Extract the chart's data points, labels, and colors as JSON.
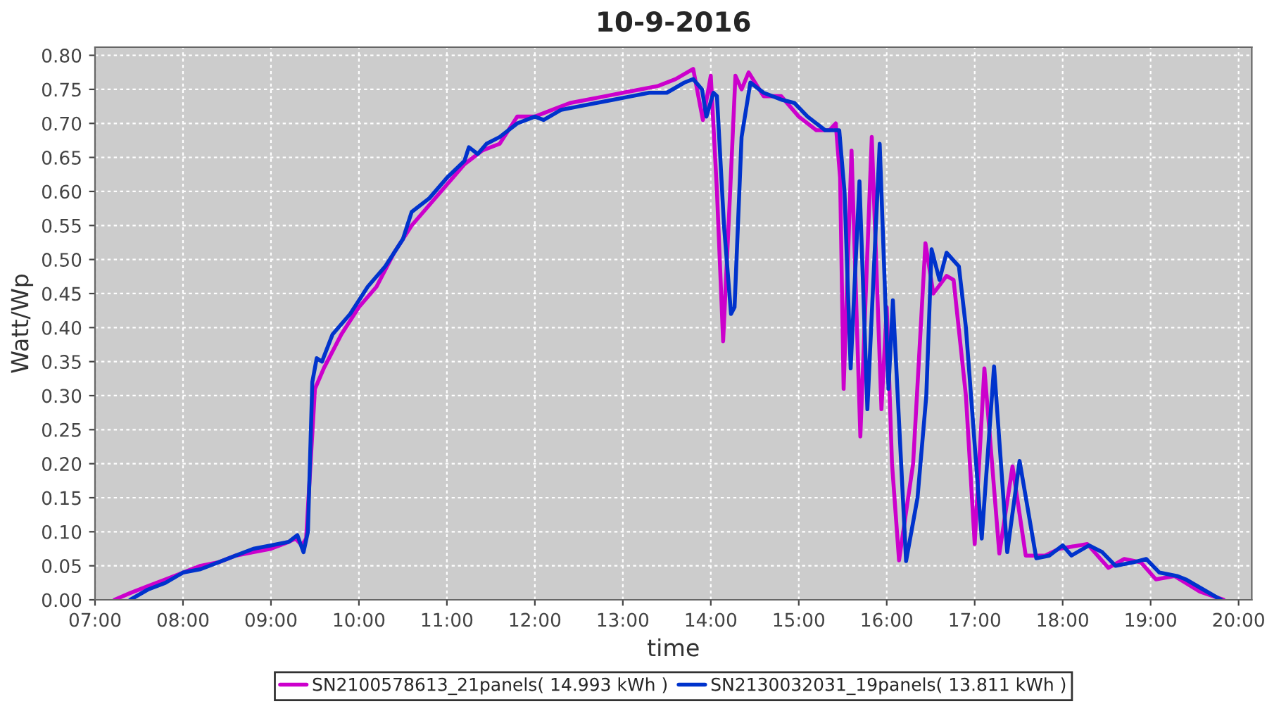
{
  "chart_data": {
    "type": "line",
    "title": "10-9-2016",
    "xlabel": "time",
    "ylabel": "Watt/Wp",
    "series": [
      {
        "name": "SN2100578613_21panels( 14.993 kWh )",
        "color": "#cc00cc",
        "x": [
          7.22,
          7.4,
          7.6,
          7.8,
          8.0,
          8.2,
          8.4,
          8.6,
          8.8,
          9.0,
          9.2,
          9.28,
          9.35,
          9.4,
          9.45,
          9.5,
          9.6,
          9.8,
          10.0,
          10.2,
          10.4,
          10.6,
          10.8,
          11.0,
          11.2,
          11.4,
          11.6,
          11.8,
          12.0,
          12.2,
          12.4,
          12.6,
          12.8,
          13.0,
          13.2,
          13.4,
          13.6,
          13.8,
          13.91,
          14.0,
          14.07,
          14.14,
          14.22,
          14.28,
          14.35,
          14.43,
          14.6,
          14.8,
          15.0,
          15.2,
          15.35,
          15.42,
          15.47,
          15.51,
          15.6,
          15.7,
          15.83,
          15.94,
          16.0,
          16.06,
          16.14,
          16.3,
          16.44,
          16.53,
          16.68,
          16.76,
          16.9,
          17.0,
          17.11,
          17.28,
          17.43,
          17.58,
          17.8,
          17.96,
          18.28,
          18.52,
          18.7,
          18.89,
          19.06,
          19.27,
          19.56,
          19.83
        ],
        "values": [
          0,
          0.01,
          0.02,
          0.03,
          0.04,
          0.05,
          0.055,
          0.065,
          0.07,
          0.075,
          0.085,
          0.09,
          0.08,
          0.09,
          0.2,
          0.31,
          0.34,
          0.39,
          0.43,
          0.46,
          0.51,
          0.55,
          0.58,
          0.61,
          0.64,
          0.66,
          0.67,
          0.71,
          0.71,
          0.72,
          0.73,
          0.735,
          0.74,
          0.745,
          0.75,
          0.755,
          0.765,
          0.78,
          0.705,
          0.77,
          0.6,
          0.38,
          0.6,
          0.77,
          0.75,
          0.775,
          0.74,
          0.74,
          0.71,
          0.69,
          0.69,
          0.7,
          0.62,
          0.31,
          0.66,
          0.24,
          0.68,
          0.28,
          0.43,
          0.2,
          0.058,
          0.2,
          0.524,
          0.45,
          0.476,
          0.47,
          0.3,
          0.082,
          0.34,
          0.068,
          0.196,
          0.065,
          0.065,
          0.075,
          0.082,
          0.047,
          0.06,
          0.055,
          0.03,
          0.035,
          0.012,
          0
        ]
      },
      {
        "name": "SN2130032031_19panels( 13.811 kWh )",
        "color": "#0033cc",
        "x": [
          7.4,
          7.6,
          7.8,
          8.0,
          8.2,
          8.4,
          8.6,
          8.8,
          9.0,
          9.2,
          9.3,
          9.37,
          9.42,
          9.47,
          9.52,
          9.58,
          9.7,
          9.9,
          10.1,
          10.3,
          10.5,
          10.6,
          10.8,
          11.0,
          11.2,
          11.25,
          11.35,
          11.45,
          11.6,
          11.8,
          12.0,
          12.1,
          12.3,
          12.5,
          12.7,
          12.9,
          13.1,
          13.3,
          13.5,
          13.7,
          13.8,
          13.9,
          13.95,
          14.03,
          14.07,
          14.15,
          14.23,
          14.27,
          14.35,
          14.45,
          14.6,
          14.8,
          14.95,
          15.1,
          15.3,
          15.46,
          15.52,
          15.59,
          15.69,
          15.78,
          15.92,
          16.02,
          16.07,
          16.22,
          16.35,
          16.45,
          16.51,
          16.6,
          16.68,
          16.82,
          16.9,
          17.08,
          17.22,
          17.37,
          17.51,
          17.7,
          17.85,
          18.0,
          18.1,
          18.3,
          18.45,
          18.6,
          18.8,
          18.95,
          19.1,
          19.3,
          19.4,
          19.6,
          19.8
        ],
        "values": [
          0,
          0.015,
          0.025,
          0.04,
          0.045,
          0.055,
          0.065,
          0.075,
          0.08,
          0.085,
          0.095,
          0.07,
          0.1,
          0.32,
          0.355,
          0.35,
          0.39,
          0.42,
          0.46,
          0.49,
          0.53,
          0.57,
          0.59,
          0.62,
          0.645,
          0.665,
          0.655,
          0.67,
          0.68,
          0.7,
          0.71,
          0.705,
          0.72,
          0.725,
          0.73,
          0.735,
          0.74,
          0.745,
          0.745,
          0.76,
          0.765,
          0.75,
          0.71,
          0.745,
          0.74,
          0.55,
          0.42,
          0.43,
          0.68,
          0.76,
          0.745,
          0.735,
          0.73,
          0.71,
          0.69,
          0.69,
          0.6,
          0.34,
          0.615,
          0.28,
          0.67,
          0.31,
          0.44,
          0.057,
          0.15,
          0.3,
          0.515,
          0.47,
          0.51,
          0.49,
          0.4,
          0.09,
          0.343,
          0.07,
          0.204,
          0.061,
          0.065,
          0.08,
          0.065,
          0.08,
          0.07,
          0.05,
          0.055,
          0.06,
          0.04,
          0.035,
          0.03,
          0.015,
          0
        ]
      }
    ],
    "xlim": [
      7.0,
      20.15
    ],
    "xticks": [
      {
        "value": 7,
        "label": "07:00"
      },
      {
        "value": 8,
        "label": "08:00"
      },
      {
        "value": 9,
        "label": "09:00"
      },
      {
        "value": 10,
        "label": "10:00"
      },
      {
        "value": 11,
        "label": "11:00"
      },
      {
        "value": 12,
        "label": "12:00"
      },
      {
        "value": 13,
        "label": "13:00"
      },
      {
        "value": 14,
        "label": "14:00"
      },
      {
        "value": 15,
        "label": "15:00"
      },
      {
        "value": 16,
        "label": "16:00"
      },
      {
        "value": 17,
        "label": "17:00"
      },
      {
        "value": 18,
        "label": "18:00"
      },
      {
        "value": 19,
        "label": "19:00"
      },
      {
        "value": 20,
        "label": "20:00"
      }
    ],
    "ylim": [
      0,
      0.812
    ],
    "yticks": [
      {
        "value": 0,
        "label": "0.00"
      },
      {
        "value": 0.05,
        "label": "0.05"
      },
      {
        "value": 0.1,
        "label": "0.10"
      },
      {
        "value": 0.15,
        "label": "0.15"
      },
      {
        "value": 0.2,
        "label": "0.20"
      },
      {
        "value": 0.25,
        "label": "0.25"
      },
      {
        "value": 0.3,
        "label": "0.30"
      },
      {
        "value": 0.35,
        "label": "0.35"
      },
      {
        "value": 0.4,
        "label": "0.40"
      },
      {
        "value": 0.45,
        "label": "0.45"
      },
      {
        "value": 0.5,
        "label": "0.50"
      },
      {
        "value": 0.55,
        "label": "0.55"
      },
      {
        "value": 0.6,
        "label": "0.60"
      },
      {
        "value": 0.65,
        "label": "0.65"
      },
      {
        "value": 0.7,
        "label": "0.70"
      },
      {
        "value": 0.75,
        "label": "0.75"
      },
      {
        "value": 0.8,
        "label": "0.80"
      }
    ],
    "grid": true,
    "legend": "bottom",
    "line_style": "solid"
  }
}
